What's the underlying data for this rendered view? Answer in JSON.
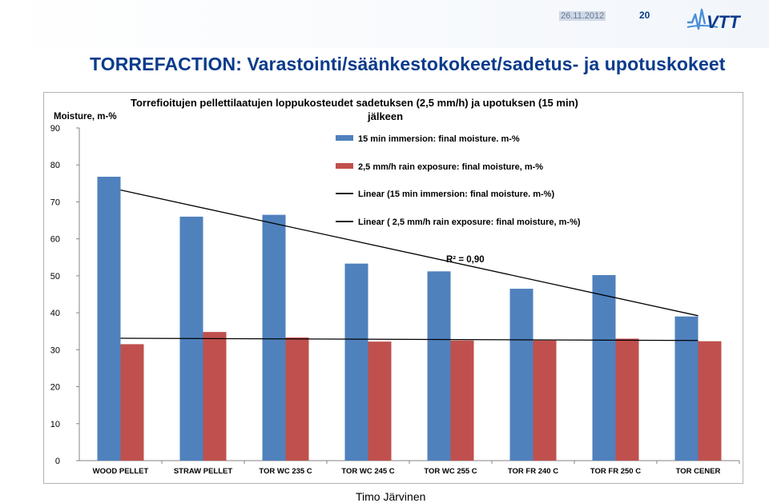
{
  "header": {
    "date": "26.11.2012",
    "page_number": "20",
    "logo_text": "VTT",
    "logo_icon": "vtt-wave-logo-icon",
    "brand_color": "#0a3b8c"
  },
  "slide": {
    "title": "TORREFACTION: Varastointi/säänkestokokeet/sadetus- ja upotuskokeet",
    "author": "Timo Järvinen"
  },
  "chart_data": {
    "type": "bar",
    "title": "Torrefioitujen pellettilaatujen loppukosteudet sadetuksen (2,5 mm/h) ja upotuksen (15 min) jälkeen",
    "ylabel": "Moisture, m-%",
    "xlabel": "",
    "ylim": [
      0,
      90
    ],
    "yticks": [
      0,
      10,
      20,
      30,
      40,
      50,
      60,
      70,
      80,
      90
    ],
    "grid": false,
    "legend_position": "top-right",
    "categories": [
      "WOOD PELLET",
      "STRAW PELLET",
      "TOR WC 235 C",
      "TOR WC 245 C",
      "TOR WC 255 C",
      "TOR FR 240 C",
      "TOR FR 250 C",
      "TOR CENER"
    ],
    "series": [
      {
        "name": "15 min immersion: final moisture. m-%",
        "color": "#4f81bd",
        "values": [
          76.8,
          66.0,
          66.5,
          53.3,
          51.2,
          46.5,
          50.2,
          39.0
        ]
      },
      {
        "name": "2,5 mm/h rain exposure: final moisture, m-%",
        "color": "#c0504d",
        "values": [
          31.5,
          34.8,
          33.3,
          32.2,
          32.5,
          32.5,
          33.0,
          32.3
        ]
      }
    ],
    "trendlines": [
      {
        "name": "Linear (15 min immersion: final moisture. m-%)",
        "start": 73.2,
        "end": 39.2,
        "color": "#000000"
      },
      {
        "name": "Linear ( 2,5 mm/h rain exposure: final moisture, m-%)",
        "start": 33.1,
        "end": 32.5,
        "color": "#000000"
      }
    ],
    "annotations": [
      {
        "text": "R² = 0,90"
      }
    ]
  }
}
